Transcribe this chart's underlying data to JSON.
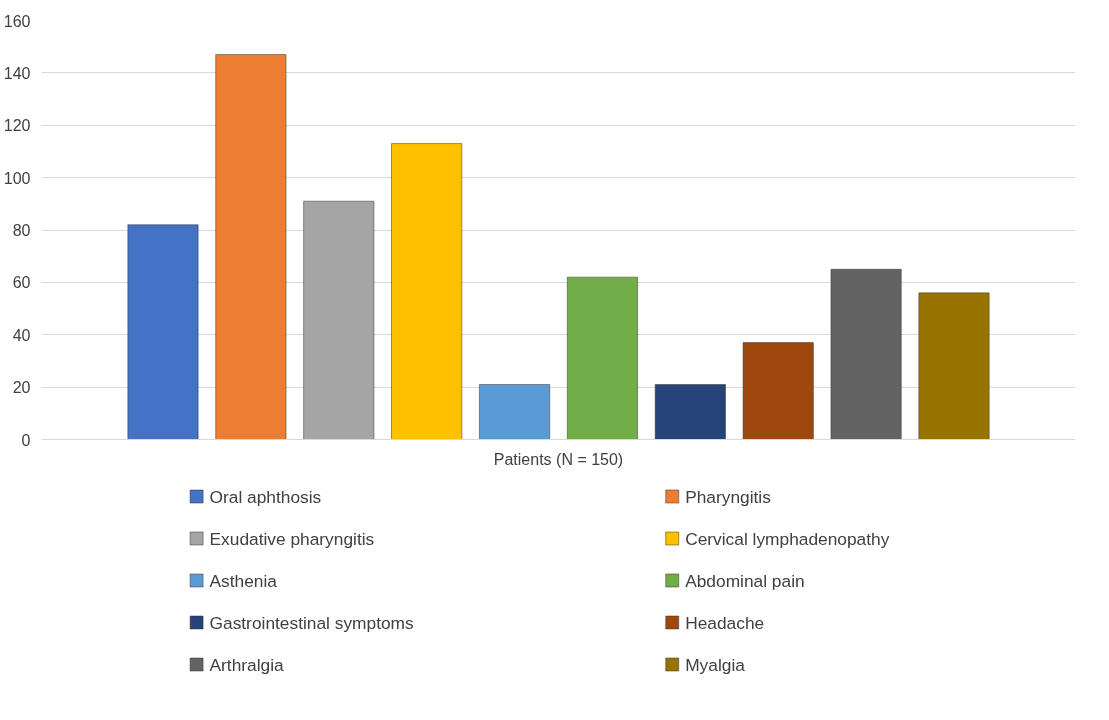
{
  "chart_data": {
    "type": "bar",
    "categories": [
      "Patients (N = 150)"
    ],
    "series": [
      {
        "name": "Oral aphthosis",
        "color": "#4472c4",
        "values": [
          82
        ]
      },
      {
        "name": "Pharyngitis",
        "color": "#ed7d31",
        "values": [
          147
        ]
      },
      {
        "name": "Exudative pharyngitis",
        "color": "#a5a5a5",
        "values": [
          91
        ]
      },
      {
        "name": "Cervical lymphadenopathy",
        "color": "#ffc000",
        "values": [
          113
        ]
      },
      {
        "name": "Asthenia",
        "color": "#5b9bd5",
        "values": [
          21
        ]
      },
      {
        "name": "Abdominal pain",
        "color": "#70ad47",
        "values": [
          62
        ]
      },
      {
        "name": "Gastrointestinal symptoms",
        "color": "#264478",
        "values": [
          21
        ]
      },
      {
        "name": "Headache",
        "color": "#9e480e",
        "values": [
          37
        ]
      },
      {
        "name": "Arthralgia",
        "color": "#636363",
        "values": [
          65
        ]
      },
      {
        "name": "Myalgia",
        "color": "#997300",
        "values": [
          56
        ]
      }
    ],
    "ylim": [
      0,
      160
    ],
    "yticks": [
      0,
      20,
      40,
      60,
      80,
      100,
      120,
      140,
      160
    ],
    "grid": "y",
    "legend": "bottom"
  }
}
